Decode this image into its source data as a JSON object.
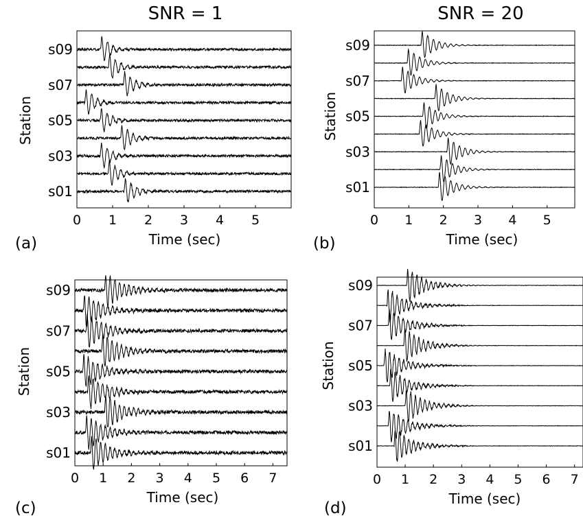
{
  "column_titles": [
    "SNR = 1",
    "SNR = 20"
  ],
  "chart_data": [
    {
      "panel": "(a)",
      "type": "line",
      "subtitle": "SNR = 1",
      "xlabel": "Time (sec)",
      "ylabel": "Station",
      "xlim": [
        0,
        6
      ],
      "xticks": [
        0,
        1,
        2,
        3,
        4,
        5
      ],
      "station_ticks": [
        "s09",
        "s07",
        "s05",
        "s03",
        "s01"
      ],
      "series": [
        {
          "name": "s01",
          "arrival": 1.32,
          "noise": 0.15,
          "amp": 1.0,
          "decay": 0.25
        },
        {
          "name": "s02",
          "arrival": 0.87,
          "noise": 0.15,
          "amp": 1.0,
          "decay": 0.25
        },
        {
          "name": "s03",
          "arrival": 0.65,
          "noise": 0.15,
          "amp": 1.0,
          "decay": 0.25
        },
        {
          "name": "s04",
          "arrival": 1.22,
          "noise": 0.15,
          "amp": 1.0,
          "decay": 0.25
        },
        {
          "name": "s05",
          "arrival": 0.65,
          "noise": 0.15,
          "amp": 1.0,
          "decay": 0.25
        },
        {
          "name": "s06",
          "arrival": 0.22,
          "noise": 0.15,
          "amp": 1.0,
          "decay": 0.25
        },
        {
          "name": "s07",
          "arrival": 1.3,
          "noise": 0.15,
          "amp": 1.0,
          "decay": 0.25
        },
        {
          "name": "s08",
          "arrival": 0.88,
          "noise": 0.15,
          "amp": 1.0,
          "decay": 0.25
        },
        {
          "name": "s09",
          "arrival": 0.66,
          "noise": 0.15,
          "amp": 1.0,
          "decay": 0.25
        }
      ]
    },
    {
      "panel": "(b)",
      "type": "line",
      "subtitle": "SNR = 20",
      "xlabel": "Time (sec)",
      "ylabel": "Station",
      "xlim": [
        0,
        5.8
      ],
      "xticks": [
        0,
        1,
        2,
        3,
        4,
        5
      ],
      "station_ticks": [
        "s09",
        "s07",
        "s05",
        "s03",
        "s01"
      ],
      "series": [
        {
          "name": "s01",
          "arrival": 1.85,
          "noise": 0.03,
          "amp": 1.1,
          "decay": 0.35
        },
        {
          "name": "s02",
          "arrival": 1.9,
          "noise": 0.03,
          "amp": 1.0,
          "decay": 0.35
        },
        {
          "name": "s03",
          "arrival": 2.1,
          "noise": 0.03,
          "amp": 1.0,
          "decay": 0.35
        },
        {
          "name": "s04",
          "arrival": 1.3,
          "noise": 0.03,
          "amp": 1.0,
          "decay": 0.35
        },
        {
          "name": "s05",
          "arrival": 1.4,
          "noise": 0.03,
          "amp": 1.0,
          "decay": 0.35
        },
        {
          "name": "s06",
          "arrival": 1.75,
          "noise": 0.03,
          "amp": 1.0,
          "decay": 0.35
        },
        {
          "name": "s07",
          "arrival": 0.78,
          "noise": 0.03,
          "amp": 1.0,
          "decay": 0.35
        },
        {
          "name": "s08",
          "arrival": 0.95,
          "noise": 0.03,
          "amp": 1.0,
          "decay": 0.35
        },
        {
          "name": "s09",
          "arrival": 1.35,
          "noise": 0.03,
          "amp": 1.0,
          "decay": 0.35
        }
      ]
    },
    {
      "panel": "(c)",
      "type": "line",
      "xlabel": "Time (sec)",
      "ylabel": "Station",
      "xlim": [
        0,
        7.5
      ],
      "xticks": [
        0,
        1,
        2,
        3,
        4,
        5,
        6,
        7
      ],
      "station_ticks": [
        "s09",
        "s07",
        "s05",
        "s03",
        "s01"
      ],
      "series": [
        {
          "name": "s01",
          "arrival": 0.55,
          "noise": 0.18,
          "amp": 1.0,
          "decay": 0.6
        },
        {
          "name": "s02",
          "arrival": 0.38,
          "noise": 0.18,
          "amp": 1.0,
          "decay": 0.6
        },
        {
          "name": "s03",
          "arrival": 1.05,
          "noise": 0.18,
          "amp": 1.0,
          "decay": 0.6
        },
        {
          "name": "s04",
          "arrival": 0.45,
          "noise": 0.18,
          "amp": 1.0,
          "decay": 0.6
        },
        {
          "name": "s05",
          "arrival": 0.28,
          "noise": 0.18,
          "amp": 1.0,
          "decay": 0.6
        },
        {
          "name": "s06",
          "arrival": 0.95,
          "noise": 0.18,
          "amp": 1.0,
          "decay": 0.6
        },
        {
          "name": "s07",
          "arrival": 0.4,
          "noise": 0.18,
          "amp": 1.0,
          "decay": 0.6
        },
        {
          "name": "s08",
          "arrival": 0.3,
          "noise": 0.18,
          "amp": 1.0,
          "decay": 0.6
        },
        {
          "name": "s09",
          "arrival": 1.05,
          "noise": 0.18,
          "amp": 1.0,
          "decay": 0.6
        }
      ]
    },
    {
      "panel": "(d)",
      "type": "line",
      "xlabel": "Time (sec)",
      "ylabel": "Station",
      "xlim": [
        0,
        7.3
      ],
      "xticks": [
        0,
        1,
        2,
        3,
        4,
        5,
        6,
        7
      ],
      "station_ticks": [
        "s09",
        "s07",
        "s05",
        "s03",
        "s01"
      ],
      "series": [
        {
          "name": "s01",
          "arrival": 0.6,
          "noise": 0.02,
          "amp": 1.0,
          "decay": 0.55,
          "coda_end": 3.7
        },
        {
          "name": "s02",
          "arrival": 0.4,
          "noise": 0.02,
          "amp": 1.0,
          "decay": 0.55,
          "coda_end": 3.7
        },
        {
          "name": "s03",
          "arrival": 1.0,
          "noise": 0.02,
          "amp": 1.0,
          "decay": 0.55,
          "coda_end": 3.7
        },
        {
          "name": "s04",
          "arrival": 0.45,
          "noise": 0.02,
          "amp": 1.0,
          "decay": 0.55,
          "coda_end": 3.7
        },
        {
          "name": "s05",
          "arrival": 0.25,
          "noise": 0.02,
          "amp": 1.0,
          "decay": 0.55,
          "coda_end": 3.7
        },
        {
          "name": "s06",
          "arrival": 0.95,
          "noise": 0.02,
          "amp": 1.0,
          "decay": 0.55,
          "coda_end": 3.7
        },
        {
          "name": "s07",
          "arrival": 0.4,
          "noise": 0.02,
          "amp": 1.0,
          "decay": 0.55,
          "coda_end": 3.7
        },
        {
          "name": "s08",
          "arrival": 0.35,
          "noise": 0.02,
          "amp": 1.0,
          "decay": 0.55,
          "coda_end": 3.7
        },
        {
          "name": "s09",
          "arrival": 1.05,
          "noise": 0.02,
          "amp": 1.0,
          "decay": 0.55,
          "coda_end": 3.7
        }
      ]
    }
  ]
}
